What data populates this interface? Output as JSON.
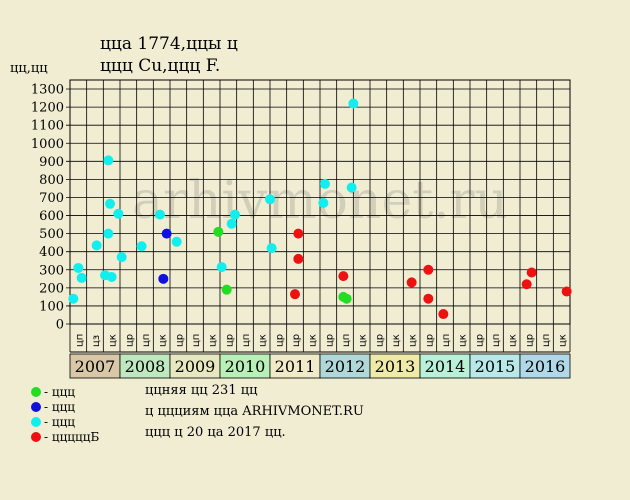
{
  "header": {
    "title_line1": "ццa 1774,ццы ц",
    "title_line2": "ццц Cu,ццц F.",
    "y_unit": "цц,цц"
  },
  "watermark": "arhivmonet.ru",
  "colors": {
    "background": "#f0edd2",
    "grid": "#000000",
    "green": "#22dd22",
    "blue": "#1111dd",
    "cyan": "#11eeee",
    "red": "#ee1111"
  },
  "legend": [
    {
      "label": "- ццц",
      "color": "#22dd22"
    },
    {
      "label": "- ццц",
      "color": "#1111dd"
    },
    {
      "label": "- ццц",
      "color": "#11eeee"
    },
    {
      "label": "- цццццБ",
      "color": "#ee1111"
    }
  ],
  "notes": [
    "ццняя цц 231 цц",
    "ц ццциям ццa ARHIVMONET.RU",
    "ццц ц 20 цa 2017 цц."
  ],
  "chart_data": {
    "type": "scatter",
    "ylim": [
      0,
      1350
    ],
    "y_ticks": [
      0,
      100,
      200,
      300,
      400,
      500,
      600,
      700,
      800,
      900,
      1000,
      1100,
      1200,
      1300
    ],
    "years": [
      "2007",
      "2008",
      "2009",
      "2010",
      "2011",
      "2012",
      "2013",
      "2014",
      "2015",
      "2016"
    ],
    "year_colors": [
      "#d8c8a8",
      "#c0e8c0",
      "#e8e8c0",
      "#b8f0b8",
      "#f0eac8",
      "#b0d8d8",
      "#f0eaa8",
      "#b8f0d8",
      "#b8e8e8",
      "#b0d8e8"
    ],
    "x_labels": [
      "цп",
      "цз",
      "цк",
      "цр",
      "цп",
      "цк",
      "цр",
      "цп",
      "цк",
      "цр",
      "цп",
      "цк",
      "цр",
      "цр",
      "цк",
      "цр",
      "цп",
      "цк",
      "цр",
      "цк",
      "цк",
      "цр",
      "цп",
      "цк",
      "цр",
      "цп",
      "цк",
      "цр",
      "цп",
      "цк"
    ],
    "series": [
      {
        "color": "#22dd22",
        "points": [
          [
            8.9,
            510
          ],
          [
            9.4,
            190
          ],
          [
            16.4,
            150
          ],
          [
            16.6,
            140
          ]
        ]
      },
      {
        "color": "#1111dd",
        "points": [
          [
            5.6,
            250
          ],
          [
            5.8,
            500
          ]
        ]
      },
      {
        "color": "#11eeee",
        "points": [
          [
            0.2,
            140
          ],
          [
            0.5,
            310
          ],
          [
            0.7,
            255
          ],
          [
            1.6,
            435
          ],
          [
            2.1,
            270
          ],
          [
            2.3,
            905
          ],
          [
            2.3,
            500
          ],
          [
            2.4,
            665
          ],
          [
            2.5,
            260
          ],
          [
            2.9,
            610
          ],
          [
            3.1,
            370
          ],
          [
            4.3,
            430
          ],
          [
            5.4,
            605
          ],
          [
            6.4,
            455
          ],
          [
            9.1,
            315
          ],
          [
            9.7,
            555
          ],
          [
            9.9,
            605
          ],
          [
            12.0,
            690
          ],
          [
            12.1,
            420
          ],
          [
            15.2,
            670
          ],
          [
            15.3,
            775
          ],
          [
            16.9,
            755
          ],
          [
            17.0,
            1220
          ]
        ]
      },
      {
        "color": "#ee1111",
        "points": [
          [
            13.7,
            500
          ],
          [
            13.5,
            165
          ],
          [
            13.7,
            360
          ],
          [
            16.4,
            265
          ],
          [
            20.5,
            230
          ],
          [
            21.5,
            300
          ],
          [
            21.5,
            140
          ],
          [
            22.4,
            55
          ],
          [
            27.4,
            220
          ],
          [
            27.7,
            285
          ],
          [
            29.8,
            180
          ]
        ]
      }
    ]
  }
}
